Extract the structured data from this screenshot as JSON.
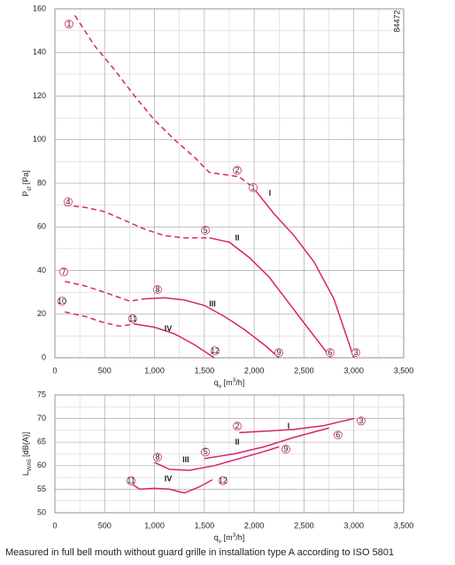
{
  "chart_data": [
    {
      "type": "line",
      "code": "84472",
      "xlim": [
        0,
        3500
      ],
      "ylim": [
        0,
        160
      ],
      "xticks": [
        0,
        500,
        {
          "value": 1000,
          "label": "1,000"
        },
        {
          "value": 1500,
          "label": "1,500"
        },
        {
          "value": 2000,
          "label": "2,000"
        },
        {
          "value": 2500,
          "label": "2,500"
        },
        {
          "value": 3000,
          "label": "3,000"
        },
        {
          "value": 3500,
          "label": "3,500"
        }
      ],
      "yticks": [
        0,
        20,
        40,
        60,
        80,
        100,
        120,
        140,
        160
      ],
      "grid": true,
      "minor_grid": true,
      "xlabel": [
        {
          "text": "q"
        },
        {
          "text": "v",
          "sub": true
        },
        {
          "text": " [m"
        },
        {
          "text": "3",
          "sup": true
        },
        {
          "text": "/h]"
        }
      ],
      "ylabel": [
        {
          "text": "P"
        },
        {
          "text": "sf",
          "sub": true
        },
        {
          "text": " [Pa]"
        }
      ],
      "series": [
        {
          "color": "#d8236f",
          "dashed": true,
          "x": [
            200,
            400,
            600,
            800,
            1000,
            1200,
            1400,
            1550,
            1700,
            1850,
            1990
          ],
          "y": [
            157,
            143,
            132,
            120,
            109,
            100,
            92,
            85,
            84,
            83,
            78
          ]
        },
        {
          "color": "#d8236f",
          "dashed": false,
          "x": [
            1990,
            2200,
            2400,
            2600,
            2800,
            3000
          ],
          "y": [
            78,
            66,
            56,
            44,
            27,
            0
          ]
        },
        {
          "color": "#d8236f",
          "dashed": true,
          "x": [
            100,
            300,
            500,
            700,
            900,
            1100,
            1300,
            1550
          ],
          "y": [
            70,
            69,
            67,
            63,
            59,
            56,
            55,
            55
          ]
        },
        {
          "color": "#d8236f",
          "dashed": false,
          "x": [
            1550,
            1750,
            1950,
            2150,
            2350,
            2550,
            2770
          ],
          "y": [
            55,
            53,
            46,
            37,
            25,
            13,
            0
          ]
        },
        {
          "color": "#d8236f",
          "dashed": true,
          "x": [
            100,
            300,
            500,
            750,
            900
          ],
          "y": [
            35,
            33,
            30,
            26,
            27
          ]
        },
        {
          "color": "#d8236f",
          "dashed": false,
          "x": [
            900,
            1100,
            1300,
            1500,
            1700,
            1900,
            2100,
            2250
          ],
          "y": [
            27,
            27.5,
            26.5,
            24,
            19,
            13,
            6,
            0
          ]
        },
        {
          "color": "#d8236f",
          "dashed": true,
          "x": [
            100,
            300,
            500,
            650,
            800
          ],
          "y": [
            21,
            19,
            16,
            14.5,
            15.5
          ]
        },
        {
          "color": "#d8236f",
          "dashed": false,
          "x": [
            800,
            1000,
            1200,
            1400,
            1600
          ],
          "y": [
            15.5,
            14,
            11,
            6,
            0
          ]
        }
      ],
      "annotations": [
        {
          "text": "1",
          "circled": true,
          "x": 142,
          "y": 153
        },
        {
          "text": "1",
          "circled": true,
          "x": 1990,
          "y": 78
        },
        {
          "text": "2",
          "circled": true,
          "x": 1830,
          "y": 86
        },
        {
          "text": "3",
          "circled": true,
          "x": 3020,
          "y": 2.4
        },
        {
          "text": "4",
          "circled": true,
          "x": 133,
          "y": 71.5
        },
        {
          "text": "5",
          "circled": true,
          "x": 1510,
          "y": 58.5
        },
        {
          "text": "6",
          "circled": true,
          "x": 2762,
          "y": 2.4
        },
        {
          "text": "7",
          "circled": true,
          "x": 89,
          "y": 39.4
        },
        {
          "text": "8",
          "circled": true,
          "x": 1030,
          "y": 31.3
        },
        {
          "text": "9",
          "circled": true,
          "x": 2247,
          "y": 2.4
        },
        {
          "text": "10",
          "circled": true,
          "x": 71,
          "y": 26
        },
        {
          "text": "11",
          "circled": true,
          "x": 781,
          "y": 17.9
        },
        {
          "text": "12",
          "circled": true,
          "x": 1607,
          "y": 3.2
        },
        {
          "text": "I",
          "circled": false,
          "x": 2158,
          "y": 75.5
        },
        {
          "text": "II",
          "circled": false,
          "x": 1830,
          "y": 55
        },
        {
          "text": "III",
          "circled": false,
          "x": 1581,
          "y": 24.8
        },
        {
          "text": "IV",
          "circled": false,
          "x": 1137,
          "y": 13.4
        }
      ]
    },
    {
      "type": "line",
      "xlim": [
        0,
        3500
      ],
      "ylim": [
        50,
        75
      ],
      "xticks": [
        0,
        500,
        {
          "value": 1000,
          "label": "1,000"
        },
        {
          "value": 1500,
          "label": "1,500"
        },
        {
          "value": 2000,
          "label": "2,000"
        },
        {
          "value": 2500,
          "label": "2,500"
        },
        {
          "value": 3000,
          "label": "3,000"
        },
        {
          "value": 3500,
          "label": "3,500"
        }
      ],
      "yticks": [
        50,
        55,
        60,
        65,
        70,
        75
      ],
      "grid": true,
      "minor_grid": true,
      "xlabel": [
        {
          "text": "q"
        },
        {
          "text": "v",
          "sub": true
        },
        {
          "text": " [m"
        },
        {
          "text": "3",
          "sup": true
        },
        {
          "text": "/h]"
        }
      ],
      "ylabel": [
        {
          "text": "L"
        },
        {
          "text": "WA5",
          "sub": true
        },
        {
          "text": " [dB(A)]"
        }
      ],
      "series": [
        {
          "color": "#d8236f",
          "dashed": false,
          "x": [
            1850,
            2100,
            2400,
            2700,
            3000
          ],
          "y": [
            67,
            67.3,
            67.7,
            68.5,
            70
          ]
        },
        {
          "color": "#d8236f",
          "dashed": false,
          "x": [
            1500,
            1800,
            2100,
            2400,
            2750
          ],
          "y": [
            61.5,
            62.5,
            64,
            66,
            68
          ]
        },
        {
          "color": "#d8236f",
          "dashed": false,
          "x": [
            1000,
            1150,
            1350,
            1600,
            1850,
            2100,
            2250
          ],
          "y": [
            60.7,
            59.2,
            59,
            60,
            61.5,
            63,
            64
          ]
        },
        {
          "color": "#d8236f",
          "dashed": false,
          "x": [
            780,
            850,
            1000,
            1150,
            1300,
            1450,
            1580
          ],
          "y": [
            56,
            55,
            55.2,
            55,
            54.2,
            55.5,
            57
          ]
        }
      ],
      "annotations": [
        {
          "text": "2",
          "circled": true,
          "x": 1830,
          "y": 68.4
        },
        {
          "text": "I",
          "circled": false,
          "x": 2345,
          "y": 68.4
        },
        {
          "text": "3",
          "circled": true,
          "x": 3073,
          "y": 69.5
        },
        {
          "text": "6",
          "circled": true,
          "x": 2841,
          "y": 66.5
        },
        {
          "text": "II",
          "circled": false,
          "x": 1830,
          "y": 65
        },
        {
          "text": "9",
          "circled": true,
          "x": 2318,
          "y": 63.5
        },
        {
          "text": "5",
          "circled": true,
          "x": 1510,
          "y": 62.9
        },
        {
          "text": "8",
          "circled": true,
          "x": 1030,
          "y": 61.8
        },
        {
          "text": "III",
          "circled": false,
          "x": 1314,
          "y": 61.3
        },
        {
          "text": "11",
          "circled": true,
          "x": 764,
          "y": 56.8
        },
        {
          "text": "IV",
          "circled": false,
          "x": 1137,
          "y": 57.2
        },
        {
          "text": "12",
          "circled": true,
          "x": 1687,
          "y": 56.8
        }
      ]
    }
  ],
  "footnote": "Measured in full bell mouth without guard grille in installation type A according to ISO 5801"
}
